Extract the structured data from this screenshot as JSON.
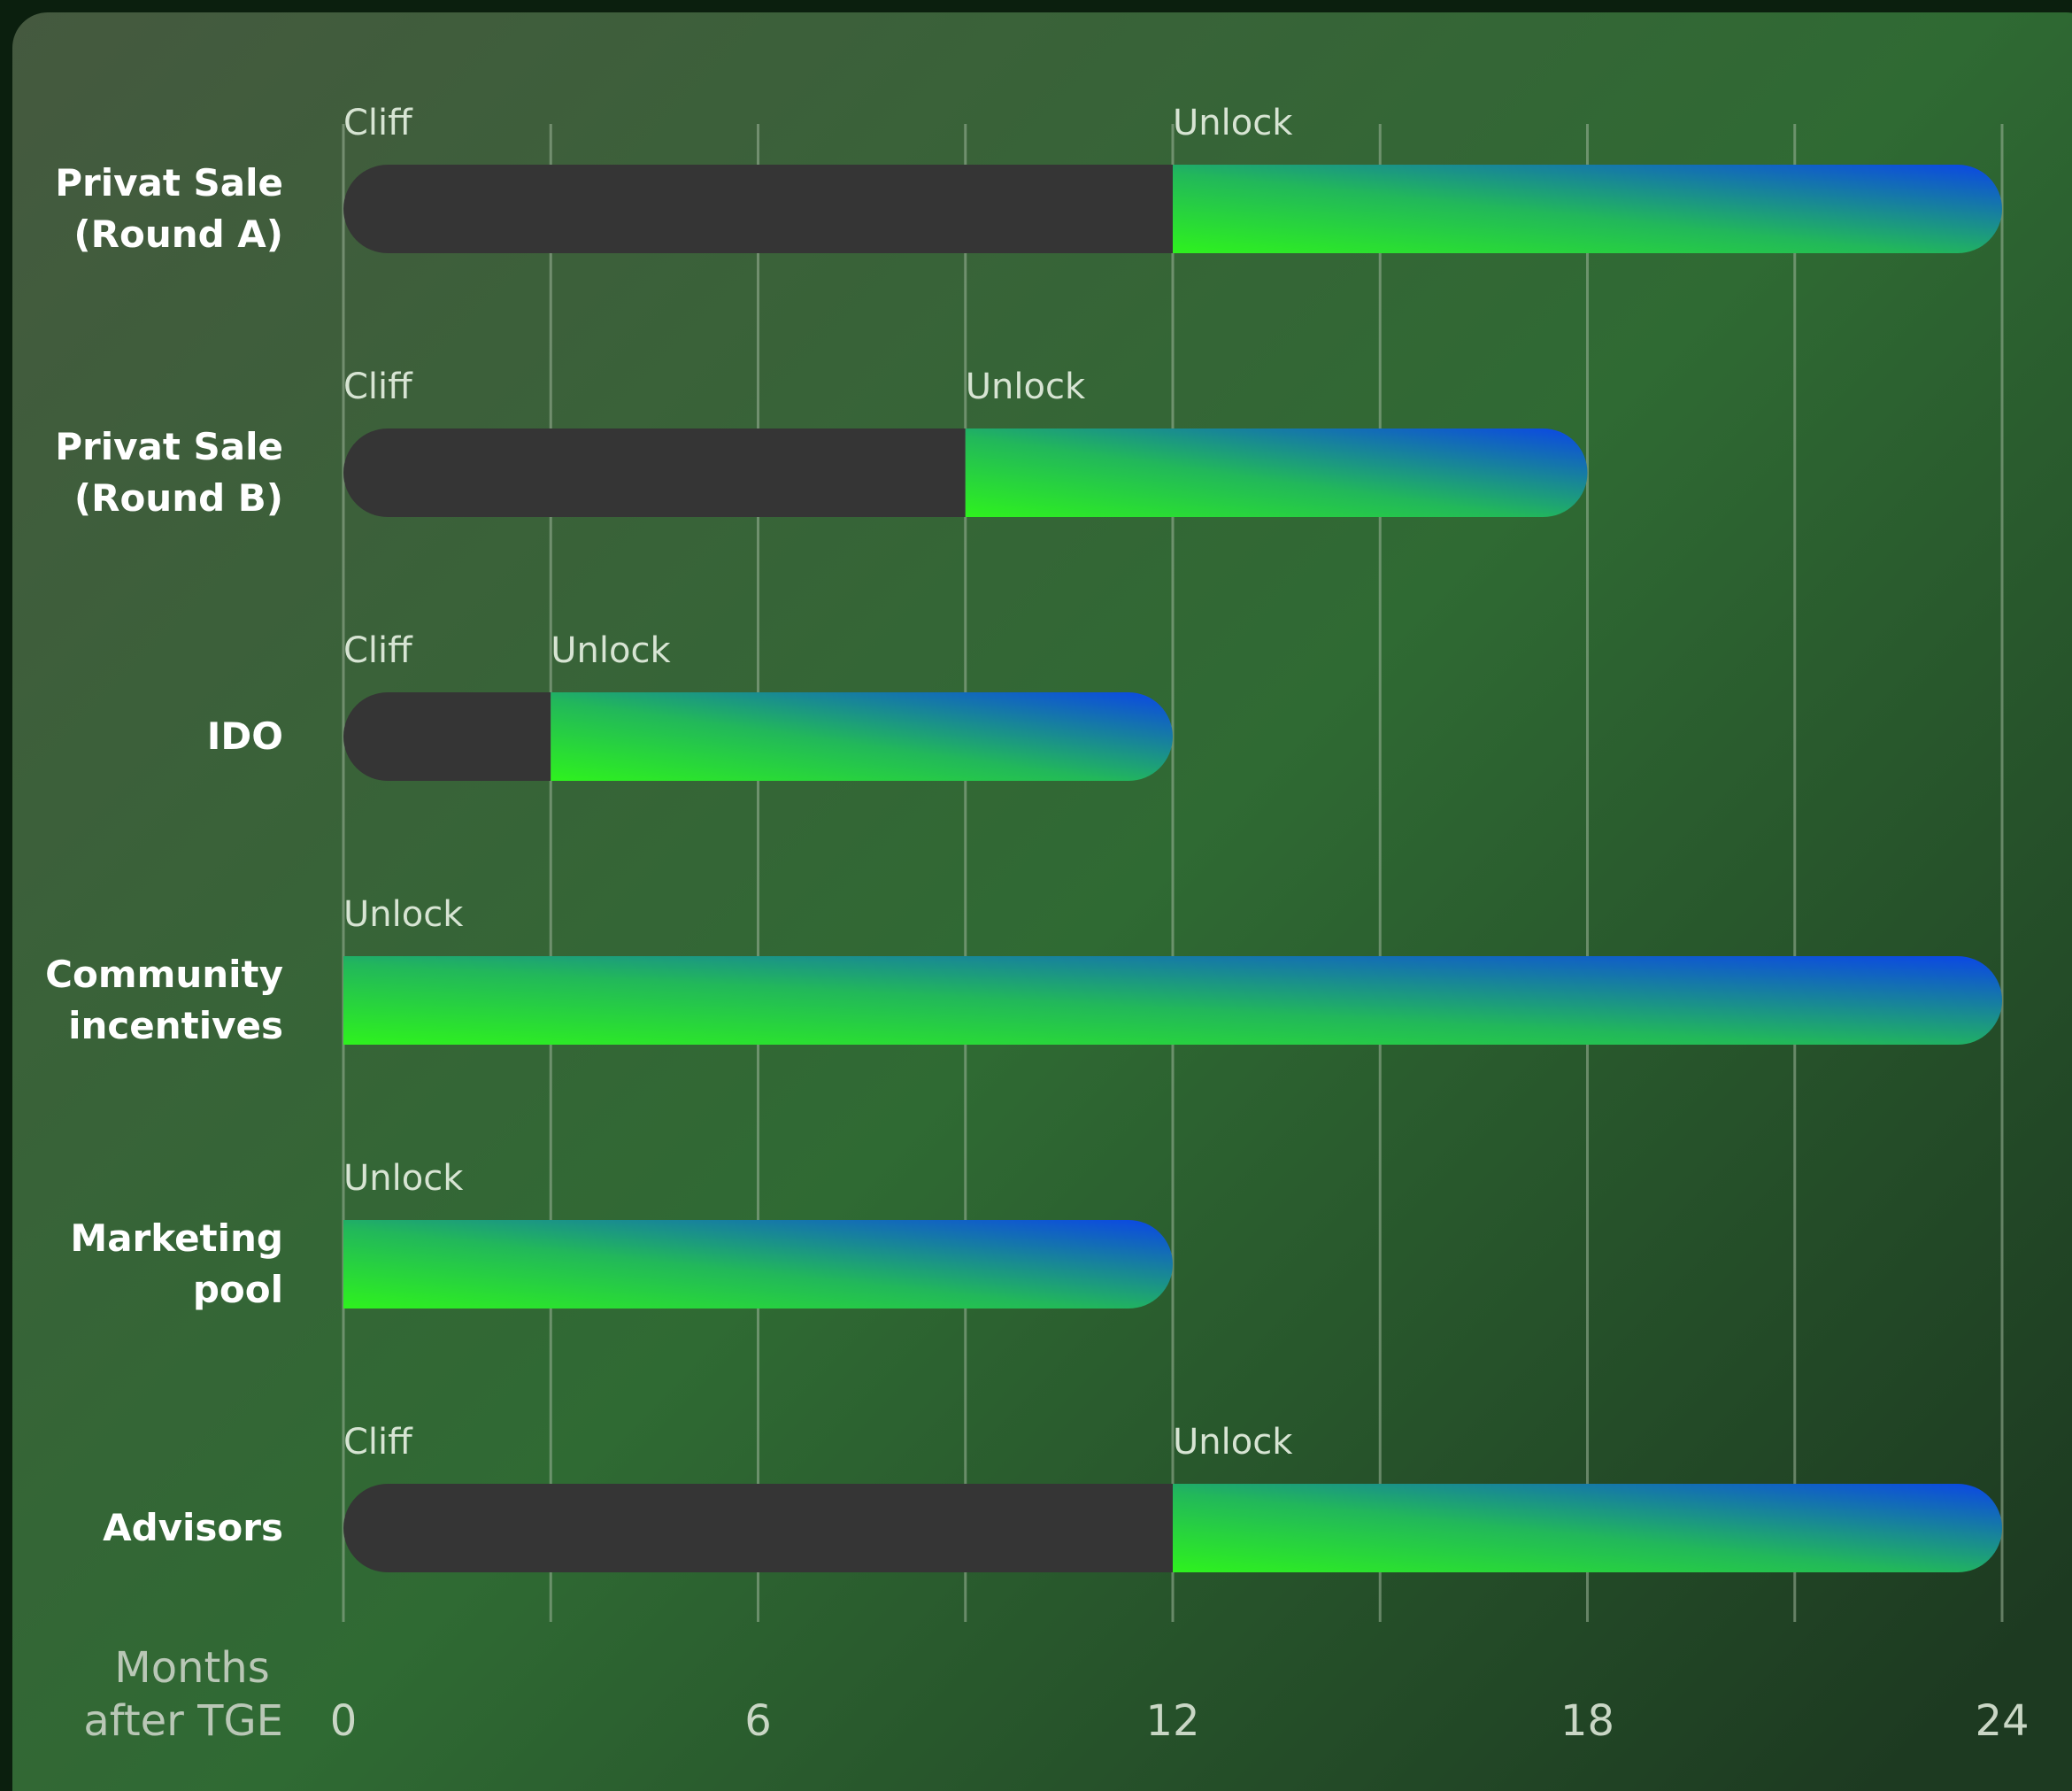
{
  "chart_data": {
    "type": "bar",
    "orientation": "horizontal",
    "title": "",
    "xlabel": "Months after TGE",
    "ylabel": "",
    "xlim": [
      0,
      24
    ],
    "xticks": [
      0,
      6,
      12,
      18,
      24
    ],
    "xtick_labels": [
      "0",
      "6",
      "12",
      "18",
      "24"
    ],
    "grid_step": 3,
    "grid": true,
    "legend": "none",
    "phase_labels": {
      "cliff": "Cliff",
      "unlock": "Unlock"
    },
    "colors": {
      "background_start": "#45593f",
      "background_end": "#1d3a21",
      "cliff": "#353535",
      "unlock_start": "#2ef21e",
      "unlock_end": "#0b46e6"
    },
    "categories": [
      "Privat Sale\n(Round A)",
      "Privat Sale\n(Round B)",
      "IDO",
      "Community\nincentives",
      "Marketing\npool",
      "Advisors"
    ],
    "series": [
      {
        "name": "Cliff",
        "values": [
          12,
          9,
          3,
          0,
          0,
          12
        ]
      },
      {
        "name": "Unlock",
        "values": [
          12,
          9,
          9,
          24,
          12,
          12
        ]
      }
    ]
  }
}
